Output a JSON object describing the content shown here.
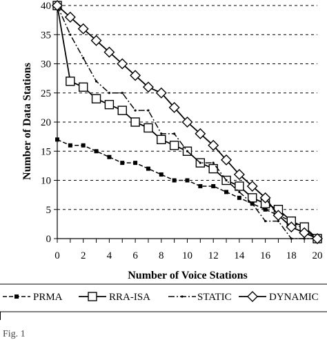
{
  "chart_data": {
    "type": "line",
    "xlabel": "Number of Voice Stations",
    "ylabel": "Number of Data Stations",
    "xlim": [
      0,
      20
    ],
    "ylim": [
      0,
      40
    ],
    "x_ticks": [
      0,
      2,
      4,
      6,
      8,
      10,
      12,
      14,
      16,
      18,
      20
    ],
    "y_ticks": [
      0,
      5,
      10,
      15,
      20,
      25,
      30,
      35,
      40
    ],
    "grid": "horizontal-dashed",
    "legend_position": "bottom",
    "series": [
      {
        "name": "PRMA",
        "style": "dashed",
        "marker": "filled-square",
        "x": [
          0,
          1,
          2,
          3,
          4,
          5,
          6,
          7,
          8,
          9,
          10,
          11,
          12,
          13,
          14,
          15,
          16,
          17,
          18,
          19,
          20
        ],
        "y": [
          17,
          16,
          16,
          15,
          14,
          13,
          13,
          12,
          11,
          10,
          10,
          9,
          9,
          8,
          7,
          6,
          5,
          4,
          3,
          1.5,
          0
        ]
      },
      {
        "name": "RRA-ISA",
        "style": "solid",
        "marker": "open-square",
        "x": [
          0,
          1,
          2,
          3,
          4,
          5,
          6,
          7,
          8,
          9,
          10,
          11,
          12,
          13,
          14,
          15,
          16,
          17,
          18,
          19,
          20
        ],
        "y": [
          40,
          27,
          26,
          24,
          23,
          22,
          20,
          19,
          17,
          16,
          15,
          13,
          12,
          10,
          9,
          7,
          6,
          5,
          3,
          2,
          0
        ]
      },
      {
        "name": "STATIC",
        "style": "dash-dot",
        "marker": "small-dot",
        "x": [
          0,
          1,
          2,
          3,
          4,
          5,
          6,
          7,
          8,
          9,
          10,
          11,
          12,
          13,
          14,
          15,
          16,
          17,
          18,
          19,
          20
        ],
        "y": [
          40,
          35,
          31,
          27,
          25,
          25,
          22,
          22,
          18,
          18,
          15,
          13,
          13,
          10,
          8,
          6,
          3,
          3,
          0,
          0,
          0
        ]
      },
      {
        "name": "DYNAMIC",
        "style": "solid",
        "marker": "open-diamond",
        "x": [
          0,
          1,
          2,
          3,
          4,
          5,
          6,
          7,
          8,
          9,
          10,
          11,
          12,
          13,
          14,
          15,
          16,
          17,
          18,
          19,
          20
        ],
        "y": [
          40,
          38,
          36,
          34,
          32,
          30,
          28,
          26,
          25,
          22.5,
          20,
          18,
          16,
          13.5,
          11,
          9,
          7,
          4,
          2,
          1,
          0
        ]
      }
    ]
  },
  "footer_caption": "Fig. 1"
}
